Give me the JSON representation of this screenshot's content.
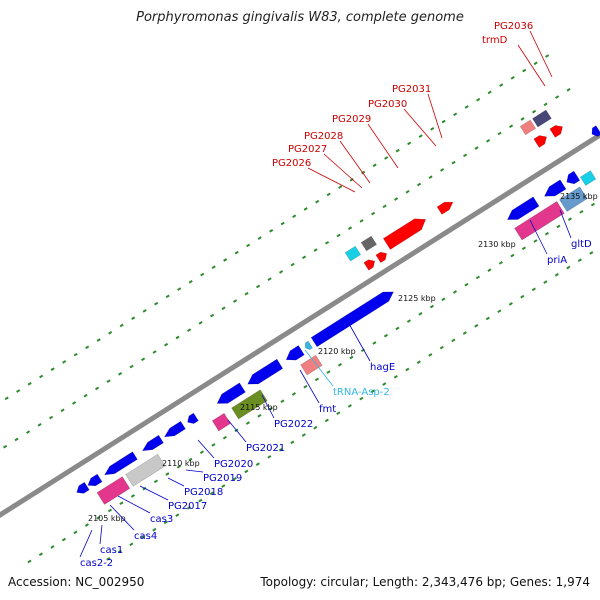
{
  "title": "Porphyromonas gingivalis W83, complete genome",
  "footer": {
    "accession": "Accession: NC_002950",
    "topology": "Topology: circular; Length: 2,343,476 bp; Genes: 1,974"
  },
  "colors": {
    "backbone": "#8a8a8a",
    "tick": "#2e8b2e",
    "cds": "#0000ee",
    "highlight": "#ff0000",
    "label_red": "#cc0000",
    "label_blue": "#0000cc",
    "label_trna": "#33b5e5",
    "pink": "#e2378c",
    "salmon": "#f08080",
    "olive": "#6b8e23",
    "gray": "#c8c8c8",
    "cyan": "#18d0e6",
    "slate": "#484878",
    "darkgray": "#666666",
    "steel": "#6699cc"
  },
  "kbp_labels": [
    {
      "text": "2105 kbp"
    },
    {
      "text": "2110 kbp"
    },
    {
      "text": "2115 kbp"
    },
    {
      "text": "2120 kbp"
    },
    {
      "text": "2125 kbp"
    },
    {
      "text": "2130 kbp"
    },
    {
      "text": "2135 kbp"
    }
  ],
  "gene_labels_top": [
    {
      "text": "PG2026",
      "color": "label_red"
    },
    {
      "text": "PG2027",
      "color": "label_red"
    },
    {
      "text": "PG2028",
      "color": "label_red"
    },
    {
      "text": "PG2029",
      "color": "label_red"
    },
    {
      "text": "PG2030",
      "color": "label_red"
    },
    {
      "text": "PG2031",
      "color": "label_red"
    },
    {
      "text": "trmD",
      "color": "label_red"
    },
    {
      "text": "PG2036",
      "color": "label_red"
    }
  ],
  "gene_labels_bottom": [
    {
      "text": "cas2-2",
      "color": "label_blue"
    },
    {
      "text": "cas1",
      "color": "label_blue"
    },
    {
      "text": "cas4",
      "color": "label_blue"
    },
    {
      "text": "cas3",
      "color": "label_blue"
    },
    {
      "text": "PG2017",
      "color": "label_blue"
    },
    {
      "text": "PG2018",
      "color": "label_blue"
    },
    {
      "text": "PG2019",
      "color": "label_blue"
    },
    {
      "text": "PG2020",
      "color": "label_blue"
    },
    {
      "text": "PG2021",
      "color": "label_blue"
    },
    {
      "text": "PG2022",
      "color": "label_blue"
    },
    {
      "text": "fmt",
      "color": "label_blue"
    },
    {
      "text": "tRNA-Asp-2",
      "color": "label_trna"
    },
    {
      "text": "hagE",
      "color": "label_blue"
    },
    {
      "text": "priA",
      "color": "label_blue"
    },
    {
      "text": "gltD",
      "color": "label_blue"
    }
  ]
}
